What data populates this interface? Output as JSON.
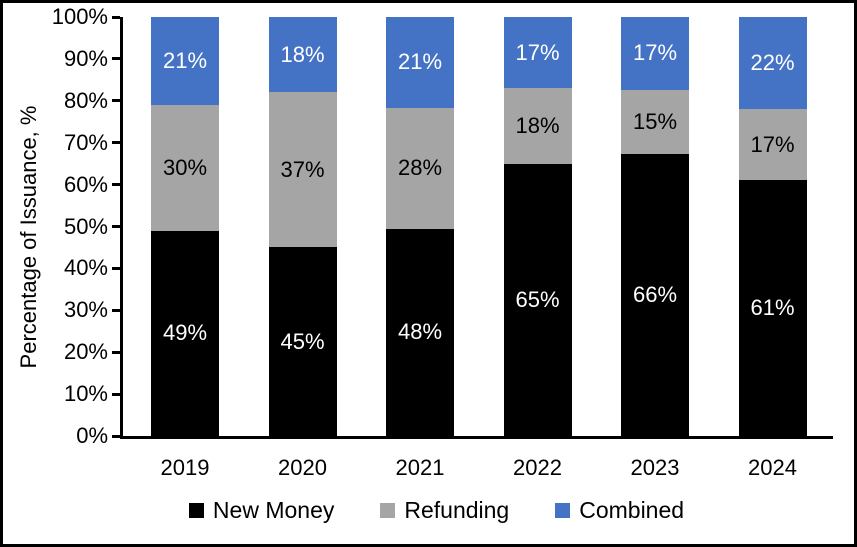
{
  "chart_data": {
    "type": "bar",
    "stacked": true,
    "stacked_100_percent": true,
    "title": "",
    "xlabel": "",
    "ylabel": "Percentage of Issuance, %",
    "categories": [
      "2019",
      "2020",
      "2021",
      "2022",
      "2023",
      "2024"
    ],
    "series": [
      {
        "name": "New Money",
        "color": "#000000",
        "label_color": "#ffffff",
        "values": [
          49,
          45,
          48,
          65,
          66,
          61
        ]
      },
      {
        "name": "Refunding",
        "color": "#a5a5a5",
        "label_color": "#000000",
        "values": [
          30,
          37,
          28,
          18,
          15,
          17
        ]
      },
      {
        "name": "Combined",
        "color": "#4472c4",
        "label_color": "#ffffff",
        "values": [
          21,
          18,
          21,
          17,
          17,
          22
        ]
      }
    ],
    "data_label_suffix": "%",
    "y_ticks": [
      "0%",
      "10%",
      "20%",
      "30%",
      "40%",
      "50%",
      "60%",
      "70%",
      "80%",
      "90%",
      "100%"
    ],
    "ylim": [
      0,
      100
    ],
    "grid": false,
    "legend_position": "bottom",
    "axis_color": "#000000",
    "background_color": "#ffffff"
  }
}
